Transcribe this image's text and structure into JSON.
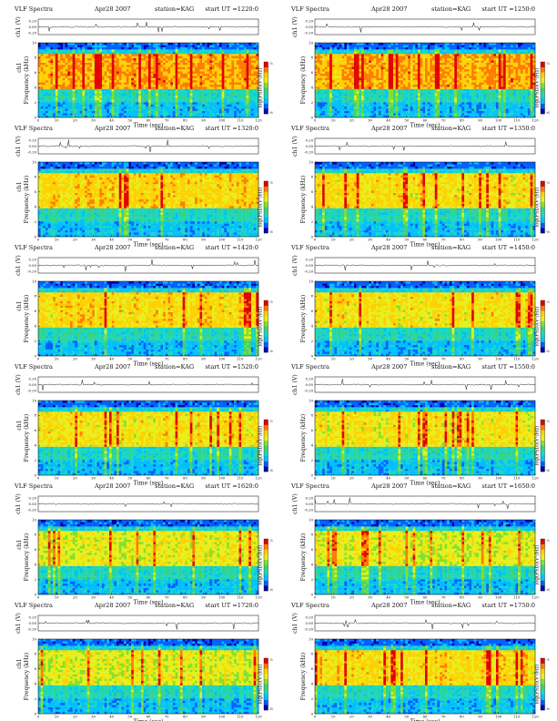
{
  "page_title": "VLF Spectra station=KAG Apr28 2007",
  "colors": {
    "spectrogram_ramp": [
      "#0000a8",
      "#005fff",
      "#00bfff",
      "#19d7c0",
      "#3ad27a",
      "#7fe12c",
      "#e6ef1a",
      "#ffd000",
      "#ff7a00",
      "#e00000"
    ],
    "waveform_line": "#000000",
    "frame": "#000000"
  },
  "chart_data": [
    {
      "type": "heatmap",
      "title": "VLF Spectra",
      "date": "Apr28 2007",
      "station": "station=KAG",
      "start": "start  UT  =1220:0",
      "top_ylabel": "ch1 (V)",
      "top_yticks": [
        "0.20",
        "0.00",
        "-0.20"
      ],
      "ylabel_chan": "ch1",
      "ylabel": "Frequency  (kHz)",
      "yticks": [
        "0",
        "2",
        "4",
        "6",
        "8",
        "10"
      ],
      "ylim": [
        0,
        10
      ],
      "xlabel": "Time  (sec)",
      "xticks": [
        "0",
        "10",
        "20",
        "30",
        "40",
        "50",
        "60",
        "70",
        "80",
        "90",
        "100",
        "110",
        "120"
      ],
      "xlim": [
        0,
        120
      ],
      "colorbar_label": "log(PSD)(V²/Hz)",
      "colorbar_ticks": [
        "-6",
        "-5"
      ],
      "intensity": 0.78
    },
    {
      "type": "heatmap",
      "title": "VLF Spectra",
      "date": "Apr28 2007",
      "station": "station=KAG",
      "start": "start  UT  =1250:0",
      "top_ylabel": "ch1 (V)",
      "top_yticks": [
        "0.20",
        "0.00",
        "-0.20"
      ],
      "ylabel_chan": "",
      "ylabel": "Frequency  (kHz)",
      "yticks": [
        "0",
        "2",
        "4",
        "6",
        "8",
        "10"
      ],
      "ylim": [
        0,
        10
      ],
      "xlabel": "Time  (sec)",
      "xticks": [
        "0",
        "10",
        "20",
        "30",
        "40",
        "50",
        "60",
        "70",
        "80",
        "90",
        "100",
        "110",
        "120"
      ],
      "xlim": [
        0,
        120
      ],
      "colorbar_label": "log(PSD)(V²/Hz)",
      "colorbar_ticks": [
        "-6",
        "-5"
      ],
      "intensity": 0.76
    },
    {
      "type": "heatmap",
      "title": "VLF Spectra",
      "date": "Apr28 2007",
      "station": "station=KAG",
      "start": "start  UT  =1320:0",
      "top_ylabel": "ch1 (V)",
      "top_yticks": [
        "0.20",
        "0.00",
        "-0.20"
      ],
      "ylabel_chan": "ch1",
      "ylabel": "Frequency  (kHz)",
      "yticks": [
        "0",
        "2",
        "4",
        "6",
        "8",
        "10"
      ],
      "ylim": [
        0,
        10
      ],
      "xlabel": "Time  (sec)",
      "xticks": [
        "0",
        "10",
        "20",
        "30",
        "40",
        "50",
        "60",
        "70",
        "80",
        "90",
        "100",
        "110",
        "120"
      ],
      "xlim": [
        0,
        120
      ],
      "colorbar_label": "log(PSD)(V²/Hz)",
      "colorbar_ticks": [
        "-6",
        "-5"
      ],
      "intensity": 0.62
    },
    {
      "type": "heatmap",
      "title": "VLF Spectra",
      "date": "Apr28 2007",
      "station": "station=KAG",
      "start": "start  UT  =1350:0",
      "top_ylabel": "ch1 (V)",
      "top_yticks": [
        "0.20",
        "0.00",
        "-0.20"
      ],
      "ylabel_chan": "",
      "ylabel": "Frequency  (kHz)",
      "yticks": [
        "0",
        "2",
        "4",
        "6",
        "8",
        "10"
      ],
      "ylim": [
        0,
        10
      ],
      "xlabel": "Time  (sec)",
      "xticks": [
        "0",
        "10",
        "20",
        "30",
        "40",
        "50",
        "60",
        "70",
        "80",
        "90",
        "100",
        "110",
        "120"
      ],
      "xlim": [
        0,
        120
      ],
      "colorbar_label": "log(PSD)(V²/Hz)",
      "colorbar_ticks": [
        "-6",
        "-5"
      ],
      "intensity": 0.58
    },
    {
      "type": "heatmap",
      "title": "VLF Spectra",
      "date": "Apr28 2007",
      "station": "station=KAG",
      "start": "start  UT  =1420:0",
      "top_ylabel": "ch1 (V)",
      "top_yticks": [
        "0.20",
        "0.00",
        "-0.20"
      ],
      "ylabel_chan": "ch1",
      "ylabel": "Frequency  (kHz)",
      "yticks": [
        "0",
        "2",
        "4",
        "6",
        "8",
        "10"
      ],
      "ylim": [
        0,
        10
      ],
      "xlabel": "Time  (sec)",
      "xticks": [
        "0",
        "10",
        "20",
        "30",
        "40",
        "50",
        "60",
        "70",
        "80",
        "90",
        "100",
        "110",
        "120"
      ],
      "xlim": [
        0,
        120
      ],
      "colorbar_label": "log(PSD)(V²/Hz)",
      "colorbar_ticks": [
        "-6",
        "-5"
      ],
      "intensity": 0.6
    },
    {
      "type": "heatmap",
      "title": "VLF Spectra",
      "date": "Apr28 2007",
      "station": "station=KAG",
      "start": "start  UT  =1450:0",
      "top_ylabel": "ch1 (V)",
      "top_yticks": [
        "0.20",
        "0.00",
        "-0.20"
      ],
      "ylabel_chan": "",
      "ylabel": "Frequency  (kHz)",
      "yticks": [
        "0",
        "2",
        "4",
        "6",
        "8",
        "10"
      ],
      "ylim": [
        0,
        10
      ],
      "xlabel": "Time  (sec)",
      "xticks": [
        "0",
        "10",
        "20",
        "30",
        "40",
        "50",
        "60",
        "70",
        "80",
        "90",
        "100",
        "110",
        "120"
      ],
      "xlim": [
        0,
        120
      ],
      "colorbar_label": "log(PSD)(V²/Hz)",
      "colorbar_ticks": [
        "-6",
        "-5"
      ],
      "intensity": 0.56
    },
    {
      "type": "heatmap",
      "title": "VLF Spectra",
      "date": "Apr28 2007",
      "station": "station=KAG",
      "start": "start  UT  =1520:0",
      "top_ylabel": "ch1 (V)",
      "top_yticks": [
        "0.20",
        "0.00",
        "-0.20"
      ],
      "ylabel_chan": "ch1",
      "ylabel": "Frequency  (kHz)",
      "yticks": [
        "0",
        "2",
        "4",
        "6",
        "8",
        "10"
      ],
      "ylim": [
        0,
        10
      ],
      "xlabel": "Time  (sec)",
      "xticks": [
        "0",
        "10",
        "20",
        "30",
        "40",
        "50",
        "60",
        "70",
        "80",
        "90",
        "100",
        "110",
        "120"
      ],
      "xlim": [
        0,
        120
      ],
      "colorbar_label": "log(PSD)(V²/Hz)",
      "colorbar_ticks": [
        "-6",
        "-5"
      ],
      "intensity": 0.55
    },
    {
      "type": "heatmap",
      "title": "VLF Spectra",
      "date": "Apr28 2007",
      "station": "station=KAG",
      "start": "start  UT  =1550:0",
      "top_ylabel": "ch1 (V)",
      "top_yticks": [
        "0.20",
        "0.00",
        "-0.20"
      ],
      "ylabel_chan": "",
      "ylabel": "Frequency  (kHz)",
      "yticks": [
        "0",
        "2",
        "4",
        "6",
        "8",
        "10"
      ],
      "ylim": [
        0,
        10
      ],
      "xlabel": "Time  (sec)",
      "xticks": [
        "0",
        "10",
        "20",
        "30",
        "40",
        "50",
        "60",
        "70",
        "80",
        "90",
        "100",
        "110",
        "120"
      ],
      "xlim": [
        0,
        120
      ],
      "colorbar_label": "log(PSD)(V²/Hz)",
      "colorbar_ticks": [
        "-6",
        "-5"
      ],
      "intensity": 0.52
    },
    {
      "type": "heatmap",
      "title": "VLF Spectra",
      "date": "Apr28 2007",
      "station": "station=KAG",
      "start": "start  UT  =1620:0",
      "top_ylabel": "ch1 (V)",
      "top_yticks": [
        "0.20",
        "0.00",
        "-0.20"
      ],
      "ylabel_chan": "ch1",
      "ylabel": "Frequency  (kHz)",
      "yticks": [
        "0",
        "2",
        "4",
        "6",
        "8",
        "10"
      ],
      "ylim": [
        0,
        10
      ],
      "xlabel": "Time  (sec)",
      "xticks": [
        "0",
        "10",
        "20",
        "30",
        "40",
        "50",
        "60",
        "70",
        "80",
        "90",
        "100",
        "110",
        "120"
      ],
      "xlim": [
        0,
        120
      ],
      "colorbar_label": "log(PSD)(V²/Hz)",
      "colorbar_ticks": [
        "-6",
        "-5"
      ],
      "intensity": 0.46
    },
    {
      "type": "heatmap",
      "title": "VLF Spectra",
      "date": "Apr28 2007",
      "station": "station=KAG",
      "start": "start  UT  =1650:0",
      "top_ylabel": "ch1 (V)",
      "top_yticks": [
        "0.20",
        "0.00",
        "-0.20"
      ],
      "ylabel_chan": "",
      "ylabel": "Frequency  (kHz)",
      "yticks": [
        "0",
        "2",
        "4",
        "6",
        "8",
        "10"
      ],
      "ylim": [
        0,
        10
      ],
      "xlabel": "Time  (sec)",
      "xticks": [
        "0",
        "10",
        "20",
        "30",
        "40",
        "50",
        "60",
        "70",
        "80",
        "90",
        "100",
        "110",
        "120"
      ],
      "xlim": [
        0,
        120
      ],
      "colorbar_label": "log(PSD)(V²/Hz)",
      "colorbar_ticks": [
        "-6",
        "-5"
      ],
      "intensity": 0.44
    },
    {
      "type": "heatmap",
      "title": "VLF Spectra",
      "date": "Apr28 2007",
      "station": "station=KAG",
      "start": "start  UT  =1720:0",
      "top_ylabel": "ch1 (V)",
      "top_yticks": [
        "0.20",
        "0.00",
        "-0.20"
      ],
      "ylabel_chan": "ch1",
      "ylabel": "Frequency  (kHz)",
      "yticks": [
        "0",
        "2",
        "4",
        "6",
        "8",
        "10"
      ],
      "ylim": [
        0,
        10
      ],
      "xlabel": "Time  (sec)",
      "xticks": [
        "0",
        "10",
        "20",
        "30",
        "40",
        "50",
        "60",
        "70",
        "80",
        "90",
        "100",
        "110",
        "120"
      ],
      "xlim": [
        0,
        120
      ],
      "colorbar_label": "log(PSD)(V²/Hz)",
      "colorbar_ticks": [
        "-6",
        "-5"
      ],
      "intensity": 0.45
    },
    {
      "type": "heatmap",
      "title": "VLF Spectra",
      "date": "Apr28 2007",
      "station": "station=KAG",
      "start": "start  UT  =1750:0",
      "top_ylabel": "ch1 (V)",
      "top_yticks": [
        "0.20",
        "0.00",
        "-0.20"
      ],
      "ylabel_chan": "",
      "ylabel": "Frequency  (kHz)",
      "yticks": [
        "0",
        "2",
        "4",
        "6",
        "8",
        "10"
      ],
      "ylim": [
        0,
        10
      ],
      "xlabel": "Time  (sec)",
      "xticks": [
        "0",
        "10",
        "20",
        "30",
        "40",
        "50",
        "60",
        "70",
        "80",
        "90",
        "100",
        "110",
        "120"
      ],
      "xlim": [
        0,
        120
      ],
      "colorbar_label": "log(PSD)(V²/Hz)",
      "colorbar_ticks": [
        "-6",
        "-5"
      ],
      "intensity": 0.6
    }
  ]
}
